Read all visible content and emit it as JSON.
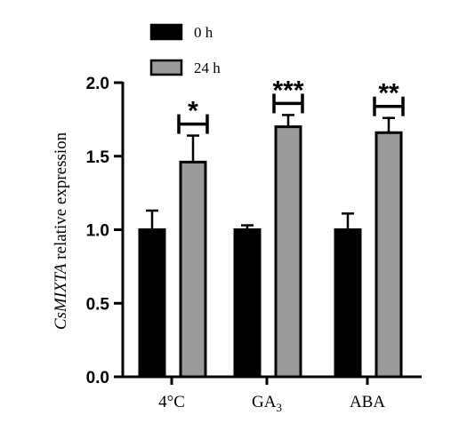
{
  "chart_data": {
    "type": "bar",
    "categories": [
      {
        "label": "4°C",
        "sub": ""
      },
      {
        "label": "GA",
        "sub": "3"
      },
      {
        "label": "ABA",
        "sub": ""
      }
    ],
    "series": [
      {
        "name": "0 h",
        "values": [
          1.0,
          1.0,
          1.0
        ],
        "errors": [
          0.13,
          0.03,
          0.11
        ],
        "color": "#000000"
      },
      {
        "name": "24 h",
        "values": [
          1.46,
          1.7,
          1.66
        ],
        "errors": [
          0.18,
          0.08,
          0.1
        ],
        "color": "#9a9a9a"
      }
    ],
    "significance": [
      "*",
      "***",
      "**"
    ],
    "ylabel_italic": "CsMIXTA",
    "ylabel_rest": " relative expression",
    "ylim": [
      0,
      2.0
    ],
    "yticks": [
      "0.0",
      "0.5",
      "1.0",
      "1.5",
      "2.0"
    ],
    "ytick_values": [
      0,
      0.5,
      1.0,
      1.5,
      2.0
    ],
    "legend_position": "top-left"
  }
}
